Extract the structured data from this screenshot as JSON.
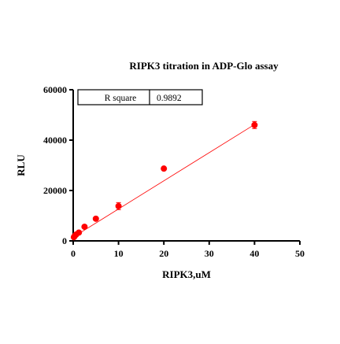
{
  "chart_data": {
    "type": "scatter",
    "title": "RIPK3 titration in ADP-Glo assay",
    "xlabel": "RIPK3,uM",
    "ylabel": "RLU",
    "xlim": [
      0,
      50
    ],
    "ylim": [
      0,
      60000
    ],
    "xticks": [
      0,
      10,
      20,
      30,
      40,
      50
    ],
    "yticks": [
      0,
      20000,
      40000,
      60000
    ],
    "grid": false,
    "series": [
      {
        "color": "#ff0000",
        "points": [
          {
            "x": 0.156,
            "y": 1500,
            "err": 300
          },
          {
            "x": 0.3125,
            "y": 1900,
            "err": 300
          },
          {
            "x": 0.625,
            "y": 2500,
            "err": 300
          },
          {
            "x": 1.25,
            "y": 3300,
            "err": 300
          },
          {
            "x": 2.5,
            "y": 5600,
            "err": 400
          },
          {
            "x": 5,
            "y": 8800,
            "err": 500
          },
          {
            "x": 10,
            "y": 13800,
            "err": 1400
          },
          {
            "x": 20,
            "y": 28700,
            "err": 400
          },
          {
            "x": 40,
            "y": 46000,
            "err": 1400
          }
        ],
        "fit": {
          "type": "linear",
          "x": [
            0,
            40
          ],
          "y": [
            1500,
            46200
          ]
        }
      }
    ],
    "stats_table": {
      "label": "R square",
      "value": "0.9892"
    }
  }
}
